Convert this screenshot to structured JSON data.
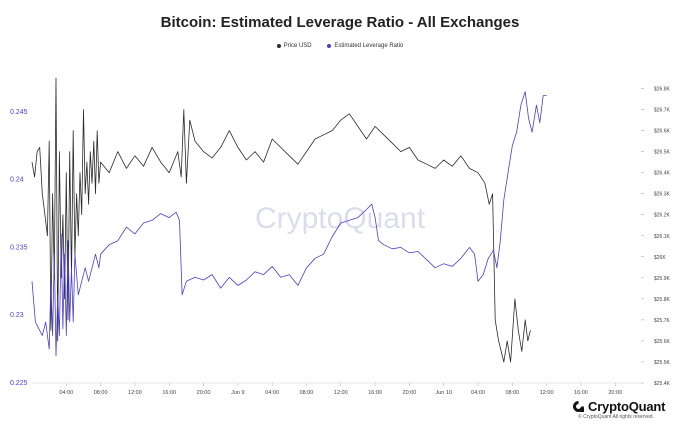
{
  "colors": {
    "price": "#2b2b2b",
    "leverage": "#4b3fcf",
    "left_axis_text": "#4b3fcf",
    "grid": "#e6e6e6",
    "watermark": "#dcdcec"
  },
  "watermark": "CryptoQuant",
  "copyright": "© CryptoQuant All rights reserved.",
  "logo_text": "CryptoQuant",
  "chart_data": {
    "type": "line",
    "title": "Bitcoin: Estimated Leverage Ratio - All Exchanges",
    "x_tick_labels": [
      "04:00",
      "08:00",
      "12:00",
      "16:00",
      "20:00",
      "Jun 9",
      "04:00",
      "08:00",
      "12:00",
      "16:00",
      "20:00",
      "Jun 10",
      "04:00",
      "08:00",
      "12:00",
      "16:00",
      "20:00"
    ],
    "x_hours": [
      4,
      8,
      12,
      16,
      20,
      24,
      28,
      32,
      36,
      40,
      44,
      48,
      52,
      56,
      60,
      64,
      68
    ],
    "x_range_hours": [
      0,
      71
    ],
    "y_left": {
      "ticks": [
        "0.245",
        "0.24",
        "0.235",
        "0.23",
        "0.225"
      ],
      "range": [
        0.225,
        0.2475
      ]
    },
    "y_right": {
      "ticks": [
        "$26.8K",
        "$26.7K",
        "$26.6K",
        "$26.5K",
        "$26.4K",
        "$26.3K",
        "$26.2K",
        "$26.1K",
        "$26K",
        "$25.9K",
        "$25.8K",
        "$25.7K",
        "$25.6K",
        "$25.5K",
        "$25.4K"
      ],
      "range": [
        25400,
        26850
      ]
    },
    "legend_position": "top-center",
    "series": [
      {
        "name": "Price USD",
        "axis": "right",
        "points": [
          [
            0,
            26450
          ],
          [
            0.3,
            26380
          ],
          [
            0.6,
            26500
          ],
          [
            0.9,
            26520
          ],
          [
            1.2,
            26300
          ],
          [
            1.5,
            26200
          ],
          [
            1.8,
            26100
          ],
          [
            2.0,
            26550
          ],
          [
            2.2,
            25650
          ],
          [
            2.4,
            26300
          ],
          [
            2.6,
            25900
          ],
          [
            2.8,
            26850
          ],
          [
            3.0,
            25600
          ],
          [
            3.2,
            26500
          ],
          [
            3.4,
            25900
          ],
          [
            3.6,
            26200
          ],
          [
            3.8,
            25800
          ],
          [
            4.0,
            26400
          ],
          [
            4.2,
            25700
          ],
          [
            4.4,
            26500
          ],
          [
            4.6,
            25900
          ],
          [
            4.8,
            26600
          ],
          [
            5.0,
            26000
          ],
          [
            5.2,
            26300
          ],
          [
            5.4,
            26100
          ],
          [
            5.6,
            26400
          ],
          [
            5.8,
            26200
          ],
          [
            6.0,
            26700
          ],
          [
            6.2,
            26300
          ],
          [
            6.4,
            26450
          ],
          [
            6.6,
            26250
          ],
          [
            6.8,
            26500
          ],
          [
            7.0,
            26350
          ],
          [
            7.2,
            26550
          ],
          [
            7.4,
            26300
          ],
          [
            7.6,
            26600
          ],
          [
            7.8,
            26350
          ],
          [
            8,
            26450
          ],
          [
            9,
            26400
          ],
          [
            10,
            26500
          ],
          [
            11,
            26420
          ],
          [
            12,
            26480
          ],
          [
            13,
            26430
          ],
          [
            14,
            26520
          ],
          [
            15,
            26450
          ],
          [
            16,
            26400
          ],
          [
            17,
            26500
          ],
          [
            17.4,
            26380
          ],
          [
            17.7,
            26700
          ],
          [
            18,
            26350
          ],
          [
            18.4,
            26650
          ],
          [
            19,
            26550
          ],
          [
            20,
            26500
          ],
          [
            21,
            26470
          ],
          [
            22,
            26520
          ],
          [
            23,
            26600
          ],
          [
            24,
            26520
          ],
          [
            25,
            26460
          ],
          [
            26,
            26500
          ],
          [
            27,
            26450
          ],
          [
            28,
            26560
          ],
          [
            29,
            26520
          ],
          [
            30,
            26480
          ],
          [
            31,
            26440
          ],
          [
            32,
            26500
          ],
          [
            33,
            26560
          ],
          [
            34,
            26580
          ],
          [
            35,
            26600
          ],
          [
            36,
            26650
          ],
          [
            37,
            26680
          ],
          [
            38,
            26620
          ],
          [
            39,
            26560
          ],
          [
            40,
            26620
          ],
          [
            41,
            26580
          ],
          [
            42,
            26540
          ],
          [
            43,
            26500
          ],
          [
            44,
            26520
          ],
          [
            45,
            26460
          ],
          [
            46,
            26440
          ],
          [
            47,
            26420
          ],
          [
            48,
            26460
          ],
          [
            49,
            26430
          ],
          [
            50,
            26480
          ],
          [
            51,
            26420
          ],
          [
            52,
            26400
          ],
          [
            52.8,
            26350
          ],
          [
            53.3,
            26250
          ],
          [
            53.7,
            26300
          ],
          [
            54,
            25700
          ],
          [
            54.4,
            25600
          ],
          [
            55,
            25500
          ],
          [
            55.4,
            25600
          ],
          [
            55.8,
            25500
          ],
          [
            56.3,
            25800
          ],
          [
            56.7,
            25650
          ],
          [
            57.1,
            25550
          ],
          [
            57.5,
            25700
          ],
          [
            57.8,
            25600
          ],
          [
            58.1,
            25650
          ]
        ]
      },
      {
        "name": "Estimated Leverage Ratio",
        "axis": "left",
        "points": [
          [
            0,
            0.2325
          ],
          [
            0.4,
            0.2295
          ],
          [
            0.8,
            0.229
          ],
          [
            1.2,
            0.2285
          ],
          [
            1.6,
            0.2295
          ],
          [
            2.0,
            0.2275
          ],
          [
            2.2,
            0.2325
          ],
          [
            2.4,
            0.2285
          ],
          [
            2.6,
            0.2345
          ],
          [
            2.8,
            0.227
          ],
          [
            3.0,
            0.2315
          ],
          [
            3.2,
            0.2285
          ],
          [
            3.4,
            0.236
          ],
          [
            3.6,
            0.229
          ],
          [
            3.8,
            0.2345
          ],
          [
            4.0,
            0.2285
          ],
          [
            4.2,
            0.2355
          ],
          [
            4.4,
            0.2295
          ],
          [
            4.6,
            0.2335
          ],
          [
            4.8,
            0.2295
          ],
          [
            5.0,
            0.2345
          ],
          [
            5.4,
            0.2315
          ],
          [
            5.8,
            0.2325
          ],
          [
            6.2,
            0.2335
          ],
          [
            6.6,
            0.2325
          ],
          [
            7.0,
            0.2335
          ],
          [
            7.4,
            0.2345
          ],
          [
            7.8,
            0.2335
          ],
          [
            8,
            0.2345
          ],
          [
            9,
            0.2352
          ],
          [
            10,
            0.2355
          ],
          [
            11,
            0.2365
          ],
          [
            12,
            0.236
          ],
          [
            13,
            0.2368
          ],
          [
            14,
            0.237
          ],
          [
            15,
            0.2375
          ],
          [
            16,
            0.2372
          ],
          [
            16.8,
            0.2376
          ],
          [
            17.2,
            0.237
          ],
          [
            17.5,
            0.2315
          ],
          [
            18,
            0.2325
          ],
          [
            19,
            0.2328
          ],
          [
            20,
            0.2326
          ],
          [
            21,
            0.233
          ],
          [
            22,
            0.232
          ],
          [
            23,
            0.2328
          ],
          [
            24,
            0.2322
          ],
          [
            25,
            0.2326
          ],
          [
            26,
            0.2332
          ],
          [
            27,
            0.233
          ],
          [
            28,
            0.2336
          ],
          [
            29,
            0.2328
          ],
          [
            30,
            0.233
          ],
          [
            31,
            0.2322
          ],
          [
            32,
            0.2335
          ],
          [
            33,
            0.2342
          ],
          [
            34,
            0.2345
          ],
          [
            35,
            0.2358
          ],
          [
            36,
            0.2368
          ],
          [
            37,
            0.237
          ],
          [
            38,
            0.2372
          ],
          [
            39,
            0.2378
          ],
          [
            39.6,
            0.2382
          ],
          [
            40,
            0.2372
          ],
          [
            40.4,
            0.2355
          ],
          [
            41,
            0.2352
          ],
          [
            42,
            0.2349
          ],
          [
            43,
            0.235
          ],
          [
            44,
            0.2346
          ],
          [
            45,
            0.2347
          ],
          [
            46,
            0.2341
          ],
          [
            47,
            0.2335
          ],
          [
            48,
            0.2338
          ],
          [
            49,
            0.2336
          ],
          [
            50,
            0.2342
          ],
          [
            51,
            0.235
          ],
          [
            51.6,
            0.2345
          ],
          [
            52,
            0.2325
          ],
          [
            52.6,
            0.233
          ],
          [
            53.2,
            0.2342
          ],
          [
            53.8,
            0.2348
          ],
          [
            54.2,
            0.2335
          ],
          [
            54.6,
            0.2355
          ],
          [
            55.0,
            0.2385
          ],
          [
            55.5,
            0.2405
          ],
          [
            56.0,
            0.2425
          ],
          [
            56.5,
            0.2435
          ],
          [
            57.0,
            0.2455
          ],
          [
            57.5,
            0.2465
          ],
          [
            57.9,
            0.2445
          ],
          [
            58.3,
            0.2435
          ],
          [
            58.8,
            0.2455
          ],
          [
            59.2,
            0.2442
          ],
          [
            59.6,
            0.2462
          ],
          [
            60.0,
            0.2462
          ]
        ]
      }
    ]
  }
}
